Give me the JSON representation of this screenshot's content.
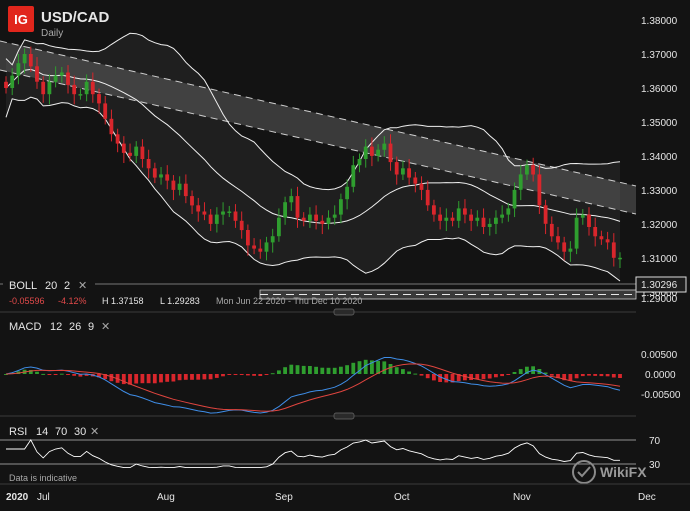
{
  "header": {
    "logo": "IG",
    "symbol": "USD/CAD",
    "timeframe": "Daily"
  },
  "price_axis": {
    "ticks": [
      "1.38000",
      "1.37000",
      "1.36000",
      "1.35000",
      "1.34000",
      "1.33000",
      "1.32000",
      "1.31000",
      "1.30000",
      "1.29000"
    ],
    "last_price": "1.30296"
  },
  "boll": {
    "name": "BOLL",
    "p1": "20",
    "p2": "2",
    "close": "✕",
    "change": "-0.05596",
    "change_pct": "-4.12%",
    "high": "H 1.37158",
    "low": "L 1.29283",
    "range": "Mon Jun 22 2020 - Thu Dec 10 2020"
  },
  "macd": {
    "name": "MACD",
    "p1": "12",
    "p2": "26",
    "p3": "9",
    "close": "✕",
    "ticks": [
      "0.00500",
      "0.0000",
      "-0.00500"
    ]
  },
  "rsi": {
    "name": "RSI",
    "p1": "14",
    "p2": "70",
    "p3": "30",
    "close": "✕",
    "ticks": [
      "70",
      "30"
    ]
  },
  "footer_note": "Data is indicative",
  "watermark": "WikiFX",
  "time_axis": {
    "labels": [
      "2020",
      "Jul",
      "Aug",
      "Sep",
      "Oct",
      "Nov",
      "Dec"
    ]
  },
  "colors": {
    "up": "#2f9e2f",
    "down": "#d9262c",
    "background": "#131313",
    "ig_red": "#e1261c"
  },
  "chart_data": {
    "type": "candlestick",
    "title": "USD/CAD",
    "subtitle": "Daily",
    "x_range": [
      "2020-06-22",
      "2020-12-10"
    ],
    "ylim": [
      1.2875,
      1.384
    ],
    "close_approx": [
      1.358,
      1.362,
      1.366,
      1.369,
      1.365,
      1.36,
      1.356,
      1.36,
      1.362,
      1.363,
      1.359,
      1.356,
      1.356,
      1.36,
      1.356,
      1.353,
      1.348,
      1.343,
      1.34,
      1.337,
      1.336,
      1.339,
      1.335,
      1.332,
      1.329,
      1.33,
      1.328,
      1.325,
      1.327,
      1.323,
      1.32,
      1.318,
      1.317,
      1.314,
      1.317,
      1.318,
      1.318,
      1.315,
      1.312,
      1.307,
      1.306,
      1.305,
      1.308,
      1.31,
      1.316,
      1.321,
      1.323,
      1.316,
      1.315,
      1.317,
      1.315,
      1.314,
      1.316,
      1.317,
      1.322,
      1.326,
      1.333,
      1.335,
      1.339,
      1.336,
      1.338,
      1.34,
      1.334,
      1.33,
      1.332,
      1.329,
      1.327,
      1.325,
      1.32,
      1.317,
      1.315,
      1.316,
      1.315,
      1.319,
      1.317,
      1.315,
      1.316,
      1.313,
      1.314,
      1.316,
      1.317,
      1.319,
      1.325,
      1.33,
      1.333,
      1.33,
      1.32,
      1.314,
      1.31,
      1.308,
      1.305,
      1.306,
      1.316,
      1.317,
      1.313,
      1.31,
      1.309,
      1.308,
      1.303,
      1.303
    ],
    "annotations": [
      "1.30296"
    ]
  }
}
